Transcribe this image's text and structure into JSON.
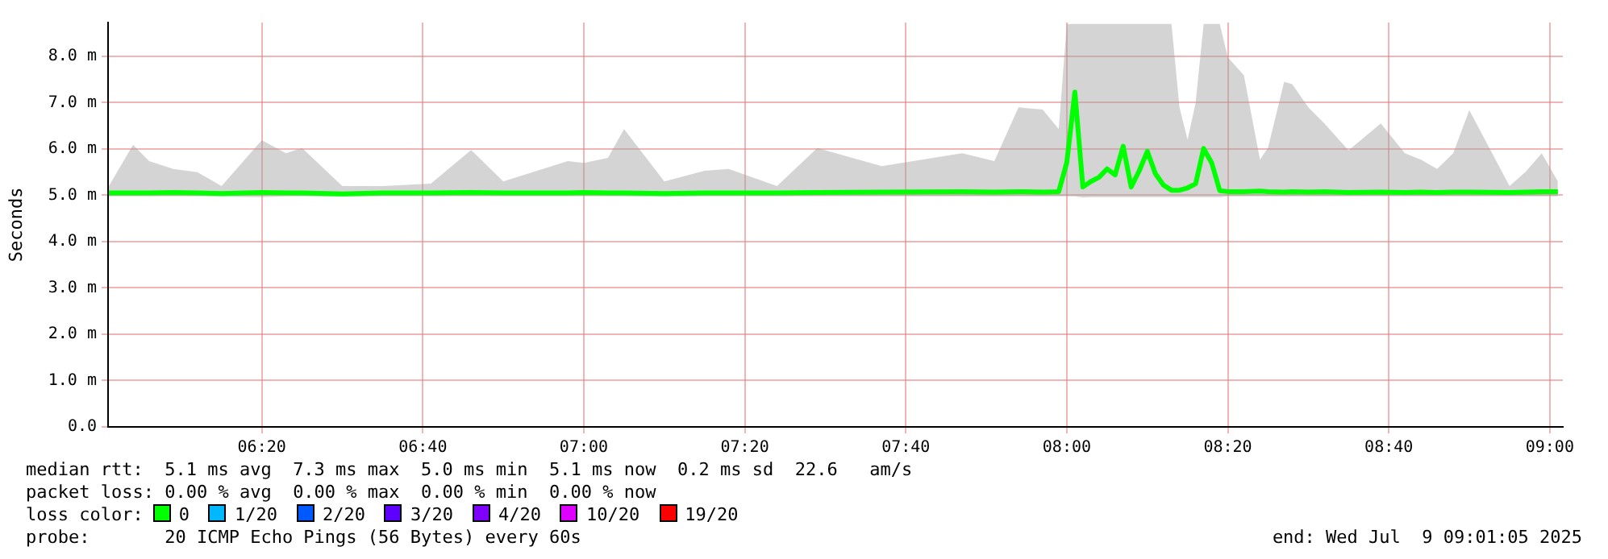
{
  "chart_data": {
    "type": "line",
    "ylabel": "Seconds",
    "x": [
      6.0167,
      6.0667,
      6.1,
      6.15,
      6.2,
      6.25,
      6.3333,
      6.3833,
      6.4167,
      6.5,
      6.5833,
      6.6833,
      6.7667,
      6.8333,
      6.9667,
      7,
      7.05,
      7.0833,
      7.1667,
      7.25,
      7.3,
      7.4,
      7.4833,
      7.6167,
      7.7833,
      7.85,
      7.9,
      7.95,
      7.9833,
      8,
      8.0167,
      8.0333,
      8.05,
      8.0667,
      8.0833,
      8.1,
      8.1167,
      8.1333,
      8.15,
      8.1667,
      8.1833,
      8.2,
      8.2167,
      8.2333,
      8.25,
      8.2667,
      8.2833,
      8.3,
      8.3167,
      8.3333,
      8.3667,
      8.4,
      8.4167,
      8.45,
      8.4667,
      8.5,
      8.5333,
      8.5833,
      8.65,
      8.7,
      8.7333,
      8.7667,
      8.8,
      8.8333,
      8.9167,
      8.95,
      8.9833,
      9.0167
    ],
    "series": [
      {
        "color": "#00ff00",
        "values": [
          5.05,
          5.05,
          5.05,
          5.06,
          5.05,
          5.04,
          5.06,
          5.05,
          5.05,
          5.03,
          5.05,
          5.05,
          5.06,
          5.05,
          5.05,
          5.06,
          5.05,
          5.05,
          5.04,
          5.05,
          5.05,
          5.05,
          5.06,
          5.07,
          5.08,
          5.07,
          5.08,
          5.07,
          5.08,
          5.71,
          7.23,
          5.18,
          5.3,
          5.39,
          5.57,
          5.44,
          6.06,
          5.18,
          5.53,
          5.95,
          5.47,
          5.22,
          5.11,
          5.11,
          5.16,
          5.25,
          6.01,
          5.7,
          5.1,
          5.08,
          5.08,
          5.09,
          5.08,
          5.07,
          5.08,
          5.07,
          5.08,
          5.06,
          5.07,
          5.06,
          5.07,
          5.06,
          5.07,
          5.07,
          5.06,
          5.07,
          5.08,
          5.08
        ],
        "lower": [
          4.98,
          4.98,
          4.98,
          4.98,
          4.98,
          4.97,
          4.96,
          4.98,
          4.98,
          4.97,
          4.98,
          4.98,
          4.98,
          4.98,
          4.98,
          4.98,
          4.98,
          4.98,
          4.97,
          4.98,
          4.98,
          4.98,
          4.98,
          4.98,
          4.98,
          4.98,
          4.98,
          4.98,
          4.98,
          4.98,
          4.98,
          4.95,
          4.96,
          4.96,
          4.96,
          4.96,
          4.96,
          4.96,
          4.96,
          4.96,
          4.96,
          4.96,
          4.96,
          4.96,
          4.96,
          4.96,
          4.96,
          4.96,
          4.96,
          4.98,
          4.98,
          4.98,
          4.98,
          4.98,
          4.98,
          4.98,
          4.98,
          4.98,
          4.98,
          4.98,
          4.98,
          4.98,
          4.98,
          4.98,
          4.98,
          4.98,
          4.98,
          4.98
        ],
        "upper": [
          5.2,
          6.09,
          5.74,
          5.57,
          5.5,
          5.2,
          6.19,
          5.91,
          6.02,
          5.2,
          5.2,
          5.25,
          5.98,
          5.3,
          5.74,
          5.7,
          5.81,
          6.43,
          5.3,
          5.53,
          5.57,
          5.2,
          6.02,
          5.63,
          5.91,
          5.74,
          6.9,
          6.85,
          6.43,
          8.7,
          8.7,
          8.7,
          8.7,
          8.7,
          8.7,
          8.7,
          8.7,
          8.7,
          8.7,
          8.7,
          8.7,
          8.7,
          8.7,
          6.9,
          6.2,
          7.0,
          8.7,
          8.7,
          8.7,
          7.98,
          7.59,
          5.77,
          6.03,
          7.45,
          7.4,
          6.9,
          6.55,
          5.97,
          6.55,
          5.91,
          5.77,
          5.57,
          5.91,
          6.84,
          5.2,
          5.51,
          5.91,
          5.3
        ]
      }
    ],
    "xlim": [
      6.015,
      9.027
    ],
    "xticks": [
      {
        "value": 6.3333,
        "label": "06:20"
      },
      {
        "value": 6.6667,
        "label": "06:40"
      },
      {
        "value": 7,
        "label": "07:00"
      },
      {
        "value": 7.3333,
        "label": "07:20"
      },
      {
        "value": 7.6667,
        "label": "07:40"
      },
      {
        "value": 8,
        "label": "08:00"
      },
      {
        "value": 8.3333,
        "label": "08:20"
      },
      {
        "value": 8.6667,
        "label": "08:40"
      },
      {
        "value": 9,
        "label": "09:00"
      }
    ],
    "ylim": [
      0,
      8.73
    ],
    "yticks": [
      {
        "value": 0,
        "label": "0.0"
      },
      {
        "value": 1,
        "label": "1.0 m"
      },
      {
        "value": 2,
        "label": "2.0 m"
      },
      {
        "value": 3,
        "label": "3.0 m"
      },
      {
        "value": 4,
        "label": "4.0 m"
      },
      {
        "value": 5,
        "label": "5.0 m"
      },
      {
        "value": 6,
        "label": "6.0 m"
      },
      {
        "value": 7,
        "label": "7.0 m"
      },
      {
        "value": 8,
        "label": "8.0 m"
      }
    ],
    "grid": true,
    "legend": false,
    "marker": "none",
    "annotations": [
      "median rtt:  5.1 ms avg  7.3 ms max  5.0 ms min  5.1 ms now  0.2 ms sd  22.6   am/s",
      "packet loss: 0.00 % avg  0.00 % max  0.00 % min  0.00 % now",
      "loss color:",
      "0",
      "1/20",
      "2/20",
      "3/20",
      "4/20",
      "10/20",
      "19/20",
      "probe:       20 ICMP Echo Pings (56 Bytes) every 60s",
      "end: Wed Jul  9 09:01:05 2025"
    ]
  }
}
